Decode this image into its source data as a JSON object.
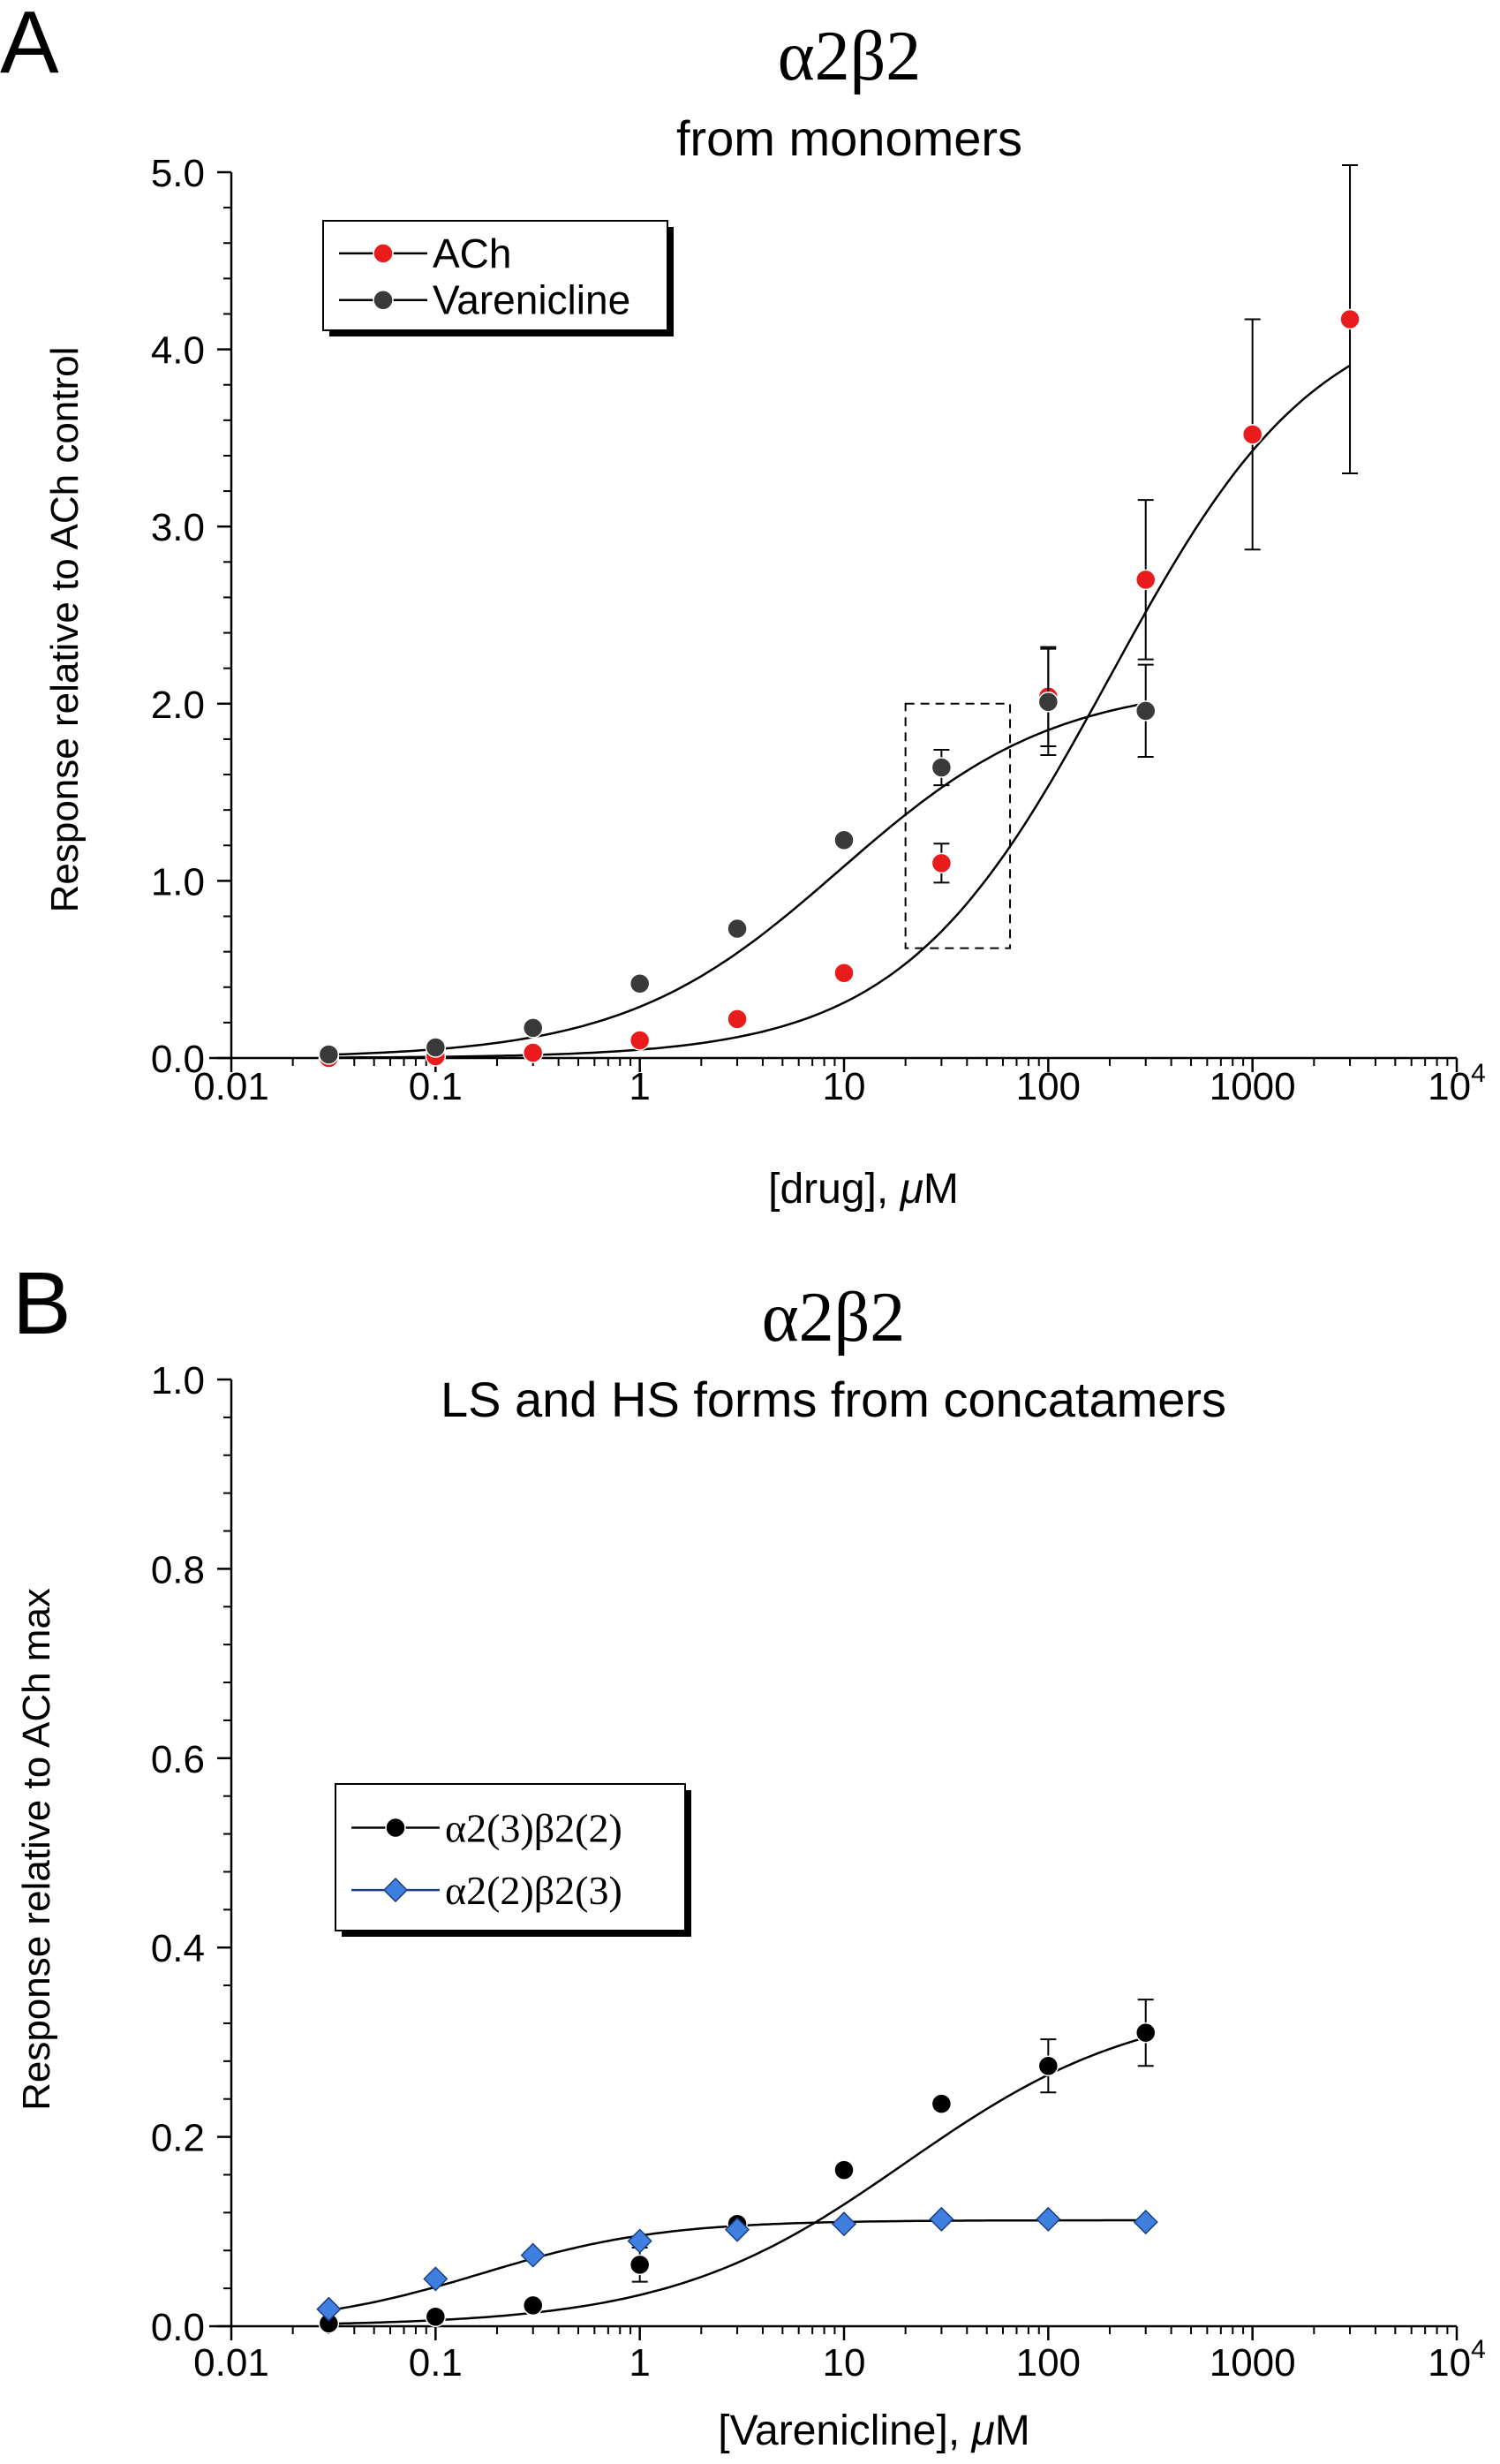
{
  "chart_data": [
    {
      "panel_label": "A",
      "type": "scatter",
      "title": "α2β2",
      "subtitle": "from monomers",
      "xlabel_prefix": "[drug], ",
      "xlabel_italic": "μ",
      "xlabel_suffix": "M",
      "ylabel": "Response relative to ACh control",
      "xscale": "log",
      "xlim": [
        0.01,
        10000
      ],
      "ylim": [
        0,
        5
      ],
      "xticks": [
        {
          "value": 0.01,
          "label": "0.01"
        },
        {
          "value": 0.1,
          "label": "0.1"
        },
        {
          "value": 1,
          "label": "1"
        },
        {
          "value": 10,
          "label": "10"
        },
        {
          "value": 100,
          "label": "100"
        },
        {
          "value": 1000,
          "label": "1000"
        },
        {
          "value": 10000,
          "label": "10",
          "sup": "4"
        }
      ],
      "yticks": [
        {
          "value": 0,
          "label": "0.0"
        },
        {
          "value": 1,
          "label": "1.0"
        },
        {
          "value": 2,
          "label": "2.0"
        },
        {
          "value": 3,
          "label": "3.0"
        },
        {
          "value": 4,
          "label": "4.0"
        },
        {
          "value": 5,
          "label": "5.0"
        }
      ],
      "legend_position": "top-left",
      "annotation": "dashed box around 20–65 μM, 0.62–2.0",
      "annotation_box": {
        "x": [
          20,
          65
        ],
        "y": [
          0.62,
          2.0
        ]
      },
      "series": [
        {
          "name": "ACh",
          "color": "#e81c1c",
          "marker": "circle",
          "x": [
            0.03,
            0.1,
            0.3,
            1,
            3,
            10,
            30,
            100,
            300,
            1000,
            3000
          ],
          "y": [
            0.0,
            0.01,
            0.03,
            0.1,
            0.22,
            0.48,
            1.1,
            2.04,
            2.7,
            3.52,
            4.17
          ],
          "err": [
            0,
            0,
            0,
            0,
            0,
            0,
            0.11,
            0.28,
            0.45,
            0.65,
            0.87
          ],
          "fit": {
            "top": 4.3,
            "ec50": 200,
            "hill": 0.85
          }
        },
        {
          "name": "Varenicline",
          "color": "#3a3a3a",
          "marker": "circle",
          "x": [
            0.03,
            0.1,
            0.3,
            1,
            3,
            10,
            30,
            100,
            300
          ],
          "y": [
            0.02,
            0.06,
            0.17,
            0.42,
            0.73,
            1.23,
            1.64,
            2.01,
            1.96
          ],
          "err": [
            0,
            0,
            0,
            0,
            0,
            0,
            0.1,
            0.3,
            0.26
          ],
          "fit": {
            "top": 2.12,
            "ec50": 9.5,
            "hill": 0.82,
            "xmax": 300
          }
        }
      ]
    },
    {
      "panel_label": "B",
      "type": "scatter",
      "title": "α2β2",
      "subtitle": "LS and HS forms from concatamers",
      "xlabel_prefix": "[Varenicline], ",
      "xlabel_italic": "μ",
      "xlabel_suffix": "M",
      "ylabel": "Response relative to ACh max",
      "xscale": "log",
      "xlim": [
        0.01,
        10000
      ],
      "ylim": [
        0,
        1
      ],
      "xticks": [
        {
          "value": 0.01,
          "label": "0.01"
        },
        {
          "value": 0.1,
          "label": "0.1"
        },
        {
          "value": 1,
          "label": "1"
        },
        {
          "value": 10,
          "label": "10"
        },
        {
          "value": 100,
          "label": "100"
        },
        {
          "value": 1000,
          "label": "1000"
        },
        {
          "value": 10000,
          "label": "10",
          "sup": "4"
        }
      ],
      "yticks": [
        {
          "value": 0,
          "label": "0.0"
        },
        {
          "value": 0.2,
          "label": "0.2"
        },
        {
          "value": 0.4,
          "label": "0.4"
        },
        {
          "value": 0.6,
          "label": "0.6"
        },
        {
          "value": 0.8,
          "label": "0.8"
        },
        {
          "value": 1.0,
          "label": "1.0"
        }
      ],
      "legend_position": "middle-left",
      "series": [
        {
          "name": "α2(3)β2(2)",
          "color": "#000000",
          "marker": "circle",
          "x": [
            0.03,
            0.1,
            0.3,
            1,
            3,
            10,
            30,
            100,
            300
          ],
          "y": [
            0.003,
            0.01,
            0.022,
            0.065,
            0.108,
            0.165,
            0.235,
            0.275,
            0.31
          ],
          "err": [
            0,
            0,
            0,
            0.018,
            0,
            0,
            0,
            0.028,
            0.035
          ],
          "fit": {
            "top": 0.345,
            "ec50": 20,
            "hill": 0.75,
            "xmax": 300
          }
        },
        {
          "name": "α2(2)β2(3)",
          "color": "#3f7fe0",
          "marker": "diamond",
          "x": [
            0.03,
            0.1,
            0.3,
            1,
            3,
            10,
            30,
            100,
            300
          ],
          "y": [
            0.018,
            0.05,
            0.075,
            0.09,
            0.102,
            0.108,
            0.113,
            0.113,
            0.11
          ],
          "err": [
            0,
            0,
            0,
            0,
            0,
            0,
            0,
            0,
            0
          ],
          "fit": {
            "top": 0.112,
            "ec50": 0.17,
            "hill": 1.0,
            "xmax": 300
          }
        }
      ]
    }
  ]
}
